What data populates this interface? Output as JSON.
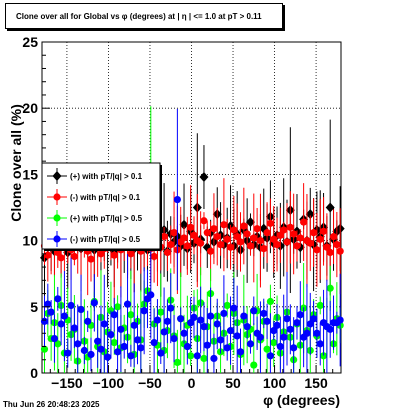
{
  "title": "Clone  over all for Global vs φ (degrees) at |  η  | <= 1.0 at pT > 0.11",
  "footer": "Thu Jun 26 20:48:23 2025",
  "chart_data": {
    "type": "scatter",
    "xlabel": "φ (degrees)",
    "ylabel": "Clone  over all (%)",
    "xlim": [
      -180,
      180
    ],
    "ylim": [
      0,
      25
    ],
    "grid": true,
    "legend_placement": "left",
    "x_ticks": [
      -150,
      -100,
      -50,
      0,
      50,
      100,
      150
    ],
    "x_tick_labels": [
      "−150",
      "−100",
      "−50",
      "0",
      "50",
      "100",
      "150"
    ],
    "y_ticks": [
      0,
      5,
      10,
      15,
      20,
      25
    ],
    "y_tick_labels": [
      "0",
      "5",
      "10",
      "15",
      "20",
      "25"
    ],
    "x": [
      -177,
      -173,
      -169,
      -165,
      -161,
      -157,
      -153,
      -149,
      -145,
      -141,
      -137,
      -133,
      -129,
      -125,
      -121,
      -117,
      -113,
      -109,
      -105,
      -101,
      -97,
      -93,
      -89,
      -85,
      -81,
      -77,
      -73,
      -69,
      -65,
      -61,
      -57,
      -53,
      -49,
      -45,
      -41,
      -37,
      -33,
      -29,
      -25,
      -21,
      -17,
      -13,
      -9,
      -5,
      -1,
      3,
      7,
      11,
      15,
      19,
      23,
      27,
      31,
      35,
      39,
      43,
      47,
      51,
      55,
      59,
      63,
      67,
      71,
      75,
      79,
      83,
      87,
      91,
      95,
      99,
      103,
      107,
      111,
      115,
      119,
      123,
      127,
      131,
      135,
      139,
      143,
      147,
      151,
      155,
      159,
      163,
      167,
      171,
      175,
      179
    ],
    "series": [
      {
        "name": "(+) with pT/|q| > 0.1",
        "color": "#000000",
        "marker": "diamond",
        "values": [
          8.7,
          9.5,
          10.1,
          9.2,
          10.6,
          9.8,
          10.3,
          9.1,
          10.8,
          9.6,
          10.2,
          9.4,
          10.9,
          9.9,
          10.4,
          9.3,
          10.7,
          9.7,
          10.1,
          9.5,
          10.5,
          9.2,
          10.8,
          9.8,
          10.3,
          9.6,
          10.9,
          9.4,
          10.2,
          9.9,
          10.6,
          9.3,
          10.4,
          9.7,
          10.1,
          9.5,
          10.8,
          9.2,
          10.5,
          9.9,
          10.3,
          9.6,
          11.2,
          9.4,
          10.7,
          9.8,
          12.5,
          10.1,
          14.8,
          9.5,
          10.6,
          9.9,
          12.0,
          10.4,
          9.7,
          10.2,
          11.1,
          9.6,
          10.5,
          9.3,
          10.8,
          10.0,
          11.4,
          9.7,
          10.3,
          9.5,
          10.9,
          10.2,
          11.8,
          9.8,
          10.4,
          9.6,
          11.0,
          9.9,
          12.3,
          10.1,
          10.7,
          9.5,
          11.6,
          10.0,
          12.0,
          9.7,
          10.8,
          10.3,
          11.0,
          9.6,
          12.5,
          10.1,
          10.7,
          10.9
        ]
      },
      {
        "name": "(-) with pT/|q| > 0.1",
        "color": "#ff0000",
        "marker": "circle",
        "values": [
          9.6,
          8.9,
          9.8,
          10.2,
          9.1,
          8.7,
          9.9,
          10.4,
          9.3,
          8.8,
          10.0,
          9.5,
          10.6,
          9.2,
          8.6,
          9.7,
          10.3,
          9.0,
          9.4,
          10.1,
          9.6,
          8.9,
          10.5,
          9.3,
          9.8,
          10.2,
          9.0,
          9.6,
          10.4,
          9.2,
          9.9,
          10.7,
          9.4,
          8.8,
          10.0,
          9.5,
          10.3,
          9.1,
          9.7,
          10.6,
          9.3,
          9.9,
          10.2,
          9.6,
          11.0,
          10.4,
          10.0,
          9.8,
          11.5,
          10.6,
          9.2,
          10.9,
          10.3,
          9.7,
          11.2,
          10.1,
          9.5,
          10.8,
          10.3,
          9.9,
          11.1,
          10.5,
          9.6,
          10.2,
          10.9,
          10.0,
          9.4,
          10.6,
          11.3,
          10.1,
          9.7,
          10.4,
          10.8,
          9.9,
          11.0,
          10.5,
          9.6,
          10.2,
          11.4,
          10.0,
          9.8,
          10.6,
          9.3,
          10.1,
          10.7,
          9.5,
          9.1,
          10.3,
          9.7,
          9.2
        ]
      },
      {
        "name": "(+) with pT/|q| > 0.5",
        "color": "#00ff00",
        "marker": "circle",
        "values": [
          1.8,
          4.5,
          2.6,
          3.8,
          2.2,
          5.1,
          1.5,
          4.0,
          2.9,
          3.3,
          0.9,
          4.8,
          2.4,
          1.2,
          3.6,
          5.4,
          2.0,
          4.2,
          1.6,
          3.1,
          4.7,
          2.3,
          5.0,
          1.9,
          3.4,
          2.7,
          4.4,
          1.4,
          3.9,
          2.5,
          5.2,
          6.2,
          15.5,
          3.7,
          2.1,
          4.6,
          1.7,
          3.2,
          5.5,
          2.8,
          0.8,
          4.1,
          2.2,
          3.6,
          1.3,
          4.9,
          2.6,
          5.3,
          1.1,
          3.5,
          6.0,
          2.4,
          4.3,
          1.6,
          3.0,
          5.1,
          2.0,
          4.5,
          3.8,
          1.4,
          4.0,
          2.9,
          3.3,
          0.6,
          4.7,
          2.5,
          3.9,
          1.8,
          5.4,
          2.3,
          4.2,
          1.5,
          3.1,
          4.6,
          2.7,
          1.0,
          3.7,
          2.1,
          4.9,
          3.2,
          1.7,
          4.4,
          2.8,
          5.1,
          1.3,
          3.5,
          6.4,
          2.2,
          4.1,
          3.6
        ]
      },
      {
        "name": "(-) with pT/|q| > 0.5",
        "color": "#0000ff",
        "marker": "circle",
        "values": [
          3.9,
          5.2,
          4.6,
          2.6,
          5.6,
          3.7,
          4.3,
          1.5,
          5.1,
          3.4,
          2.2,
          4.8,
          1.7,
          3.9,
          1.4,
          5.3,
          2.4,
          1.8,
          3.7,
          1.2,
          2.9,
          4.4,
          1.6,
          3.3,
          2.0,
          5.2,
          1.3,
          3.6,
          2.5,
          1.9,
          4.7,
          5.6,
          5.9,
          2.3,
          4.0,
          1.5,
          3.1,
          3.9,
          4.9,
          2.6,
          13.1,
          4.1,
          3.0,
          2.0,
          3.8,
          4.2,
          1.3,
          4.0,
          3.5,
          2.1,
          4.3,
          1.1,
          3.7,
          2.5,
          4.5,
          1.9,
          3.2,
          4.9,
          2.8,
          1.6,
          4.3,
          3.5,
          2.2,
          4.7,
          3.0,
          2.7,
          4.5,
          3.9,
          1.3,
          3.2,
          3.6,
          2.0,
          2.7,
          4.1,
          3.3,
          1.9,
          3.8,
          4.4,
          2.7,
          3.0,
          3.7,
          4.1,
          3.0,
          2.2,
          3.8,
          3.5,
          3.3,
          3.8,
          3.8,
          4.0
        ]
      }
    ]
  }
}
